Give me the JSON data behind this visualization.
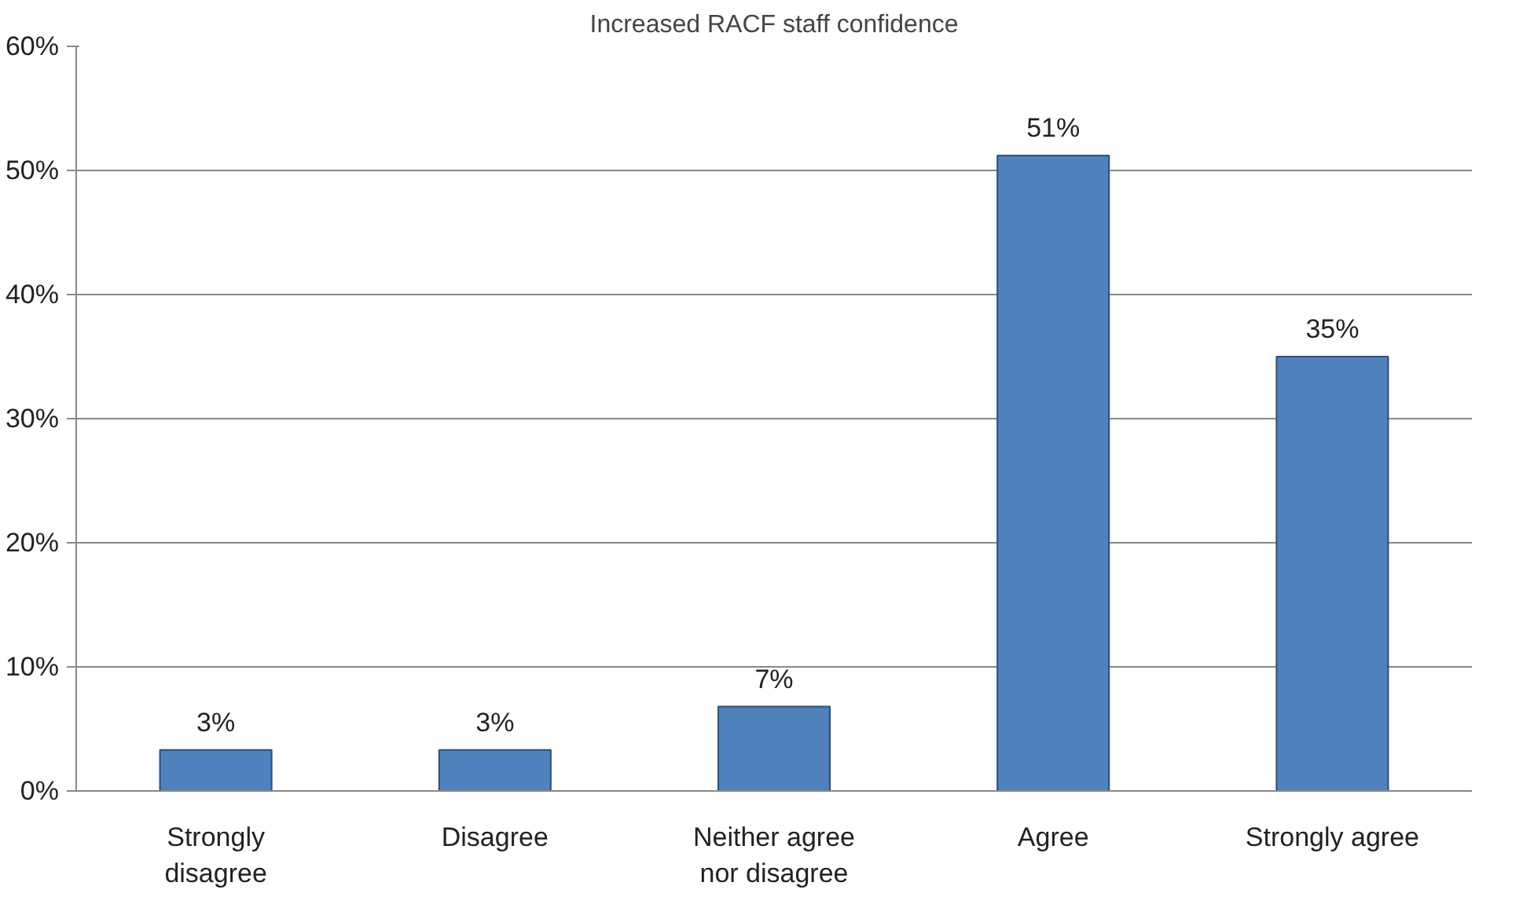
{
  "chart_data": {
    "type": "bar",
    "title": "Increased RACF staff confidence",
    "categories": [
      "Strongly disagree",
      "Disagree",
      "Neither agree nor disagree",
      "Agree",
      "Strongly agree"
    ],
    "values": [
      3.3,
      3.3,
      6.8,
      51.2,
      35.0
    ],
    "value_labels": [
      "3%",
      "3%",
      "7%",
      "51%",
      "35%"
    ],
    "color": "#4f81bd",
    "ylim": [
      0,
      60
    ],
    "yticks": [
      {
        "value": 0,
        "label": "0%"
      },
      {
        "value": 10,
        "label": "10%"
      },
      {
        "value": 20,
        "label": "20%"
      },
      {
        "value": 30,
        "label": "30%"
      },
      {
        "value": 40,
        "label": "40%"
      },
      {
        "value": 50,
        "label": "50%"
      },
      {
        "value": 60,
        "label": "60%"
      }
    ],
    "grid": "y"
  }
}
